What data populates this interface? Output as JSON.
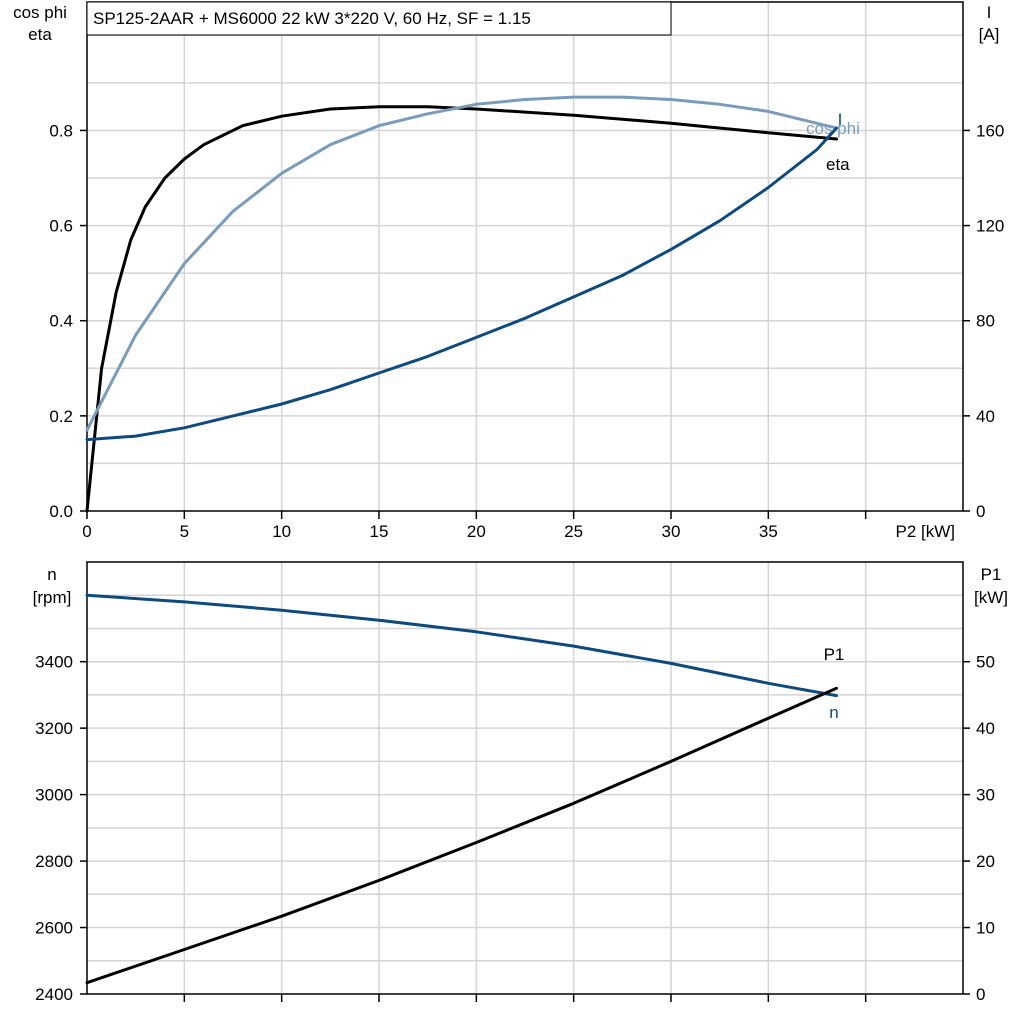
{
  "title": "SP125-2AAR + MS6000   22 kW   3*220 V, 60 Hz, SF = 1.15",
  "colors": {
    "eta": "#000000",
    "cos_phi": "#7a9cbb",
    "current": "#0e4a7e",
    "speed": "#0e4a7e",
    "p1": "#000000",
    "grid": "#d4d4d4"
  },
  "chart_data": [
    {
      "type": "line",
      "xlabel": "P2 [kW]",
      "ylabel_left": [
        "cos phi",
        "eta"
      ],
      "ylabel_right": [
        "I",
        "[A]"
      ],
      "xlim": [
        0,
        45
      ],
      "ylim_left": [
        0,
        1.07
      ],
      "ylim_right": [
        0,
        214
      ],
      "xticks": [
        "0",
        "5",
        "10",
        "15",
        "20",
        "25",
        "30",
        "35"
      ],
      "yticks_left": [
        "0.0",
        "0.2",
        "0.4",
        "0.6",
        "0.8"
      ],
      "yticks_right": [
        "0",
        "40",
        "80",
        "120",
        "160"
      ],
      "grid": true,
      "series": [
        {
          "name": "eta",
          "axis": "left",
          "label_text": "eta",
          "x": [
            0,
            0.75,
            1.5,
            2.25,
            3,
            4,
            5,
            6,
            8,
            10,
            12.5,
            15,
            17.5,
            20,
            25,
            30,
            35,
            38.5
          ],
          "y": [
            0,
            0.3,
            0.46,
            0.57,
            0.64,
            0.7,
            0.74,
            0.77,
            0.81,
            0.83,
            0.845,
            0.85,
            0.85,
            0.845,
            0.832,
            0.815,
            0.795,
            0.782
          ]
        },
        {
          "name": "cos phi",
          "axis": "left",
          "label_text": "cos phi",
          "x": [
            0,
            2.5,
            5,
            7.5,
            10,
            12.5,
            15,
            17.5,
            20,
            22.5,
            25,
            27.5,
            30,
            32.5,
            35,
            37.5,
            38.5
          ],
          "y": [
            0.17,
            0.37,
            0.52,
            0.63,
            0.71,
            0.77,
            0.81,
            0.835,
            0.855,
            0.865,
            0.87,
            0.87,
            0.865,
            0.855,
            0.84,
            0.815,
            0.805
          ]
        },
        {
          "name": "I",
          "axis": "right",
          "label_text": "I",
          "x": [
            0,
            2.5,
            5,
            7.5,
            10,
            12.5,
            15,
            17.5,
            20,
            22.5,
            25,
            27.5,
            30,
            32.5,
            35,
            37.5,
            38.5
          ],
          "y": [
            30,
            31.5,
            35,
            40,
            45,
            51,
            58,
            65,
            73,
            81,
            90,
            99,
            110,
            122,
            136,
            152,
            161
          ]
        }
      ]
    },
    {
      "type": "line",
      "ylabel_left": [
        "n",
        "[rpm]"
      ],
      "ylabel_right": [
        "P1",
        "[kW]"
      ],
      "xlim": [
        0,
        45
      ],
      "ylim_left": [
        2400,
        3700
      ],
      "ylim_right": [
        0,
        65
      ],
      "yticks_left": [
        "2400",
        "2600",
        "2800",
        "3000",
        "3200",
        "3400"
      ],
      "yticks_right": [
        "0",
        "10",
        "20",
        "30",
        "40",
        "50"
      ],
      "grid": true,
      "series": [
        {
          "name": "n",
          "axis": "left",
          "label_text": "n",
          "x": [
            0,
            5,
            10,
            15,
            20,
            25,
            30,
            35,
            38.5
          ],
          "y": [
            3600,
            3580,
            3555,
            3525,
            3490,
            3447,
            3395,
            3335,
            3298
          ]
        },
        {
          "name": "P1",
          "axis": "right",
          "label_text": "P1",
          "x": [
            0,
            5,
            10,
            15,
            20,
            25,
            30,
            35,
            38.5
          ],
          "y": [
            1.7,
            6.7,
            11.7,
            17.1,
            22.8,
            28.7,
            35,
            41.5,
            46
          ]
        }
      ]
    }
  ]
}
